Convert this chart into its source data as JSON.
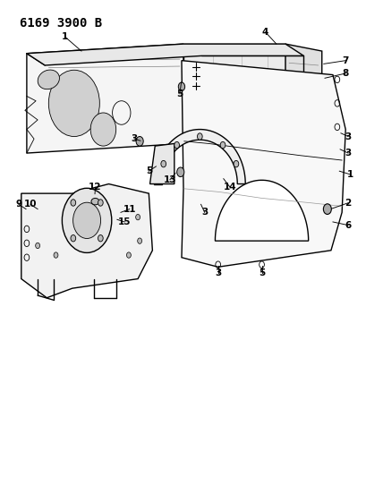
{
  "title": "6169 3900 B",
  "title_fontsize": 10,
  "title_fontweight": "bold",
  "bg_color": "#ffffff",
  "line_color": "#000000",
  "fig_width": 4.1,
  "fig_height": 5.33,
  "dpi": 100
}
